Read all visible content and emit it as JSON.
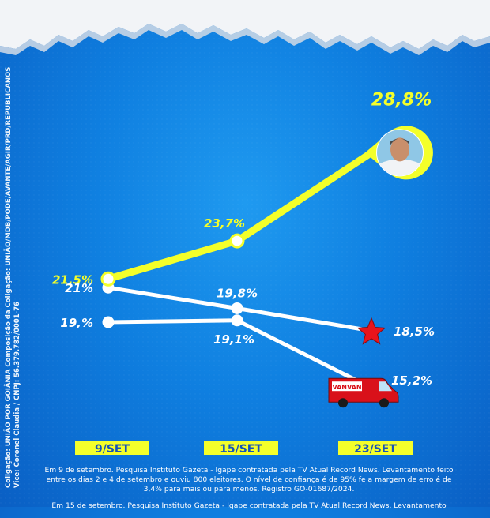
{
  "chart_data": {
    "type": "line",
    "categories": [
      "9/SET",
      "15/SET",
      "23/SET"
    ],
    "series": [
      {
        "values": [
          21.5,
          23.7,
          28.8
        ],
        "labels": [
          "21,5%",
          "23,7%",
          "28,8%"
        ],
        "color": "#f4ff2a",
        "end_marker": "candidate-photo"
      },
      {
        "values": [
          21,
          19.8,
          18.5
        ],
        "labels": [
          "21%",
          "19,8%",
          "18,5%"
        ],
        "color": "#ffffff",
        "end_marker": "red-star"
      },
      {
        "values": [
          19,
          19.1,
          15.2
        ],
        "labels": [
          "19,%",
          "19,1%",
          "15,2%"
        ],
        "color": "#ffffff",
        "end_marker": "red-van"
      }
    ]
  },
  "sidebar_text": [
    "Coligação: UNIÃO POR GOIÂNIA Composição da Coligação: UNIÃO/MDB/PODE/AVANTE/AGIR/PRD/REPUBLICANOS",
    "Vice: Coronel Claudia / CNPJ: 56.379.782/0001-76"
  ],
  "footer": {
    "note1": "Em 9 de setembro. Pesquisa Instituto Gazeta - Igape contratada pela TV Atual Record News. Levantamento feito entre os dias 2 e 4 de setembro e ouviu 800 eleitores. O nível de confiança é de 95% fe a margem de erro é de 3,4% para mais ou para menos. Registro GO-01687/2024.",
    "note2": "Em 15 de setembro. Pesquisa Instituto Gazeta - Igape contratada pela TV Atual Record News. Levantamento"
  },
  "van_text": "VANVAN",
  "colors": {
    "highlight": "#f4ff2a",
    "label_bg": "#f4ff2a",
    "label_text": "#1553b8",
    "star": "#e8141b",
    "van": "#d9111a"
  }
}
